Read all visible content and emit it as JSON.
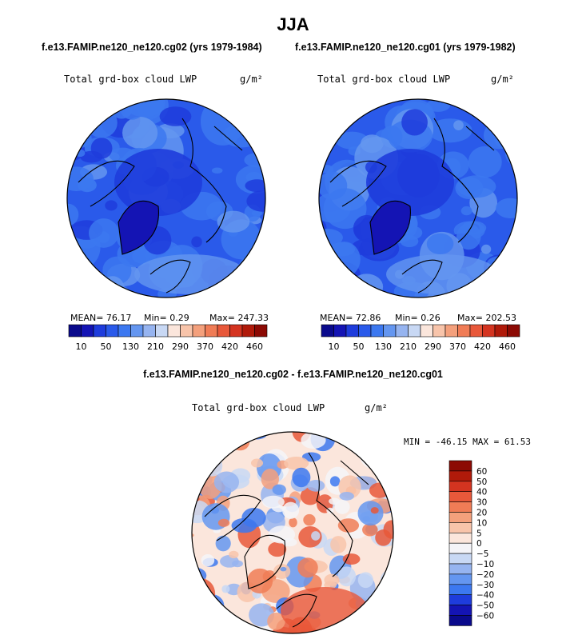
{
  "page": {
    "title": "JJA",
    "run_a_title": "f.e13.FAMIP.ne120_ne120.cg02 (yrs 1979-1984)",
    "run_b_title": "f.e13.FAMIP.ne120_ne120.cg01 (yrs 1979-1982)",
    "diff_title": "f.e13.FAMIP.ne120_ne120.cg02 - f.e13.FAMIP.ne120_ne120.cg01"
  },
  "chart_data": [
    {
      "type": "heatmap",
      "projection": "north-polar-stereographic",
      "title": "Total grd-box cloud LWP",
      "units": "g/m²",
      "stats_text": {
        "mean": "MEAN=  76.17",
        "min": "Min=   0.29",
        "max": "Max= 247.33"
      },
      "stats": {
        "mean": 76.17,
        "min": 0.29,
        "max": 247.33
      },
      "colorbar": {
        "orientation": "horizontal",
        "tick_labels": [
          "10",
          "50",
          "130",
          "210",
          "290",
          "370",
          "420",
          "460"
        ],
        "colors": [
          "#0a0a8c",
          "#1414b4",
          "#1e3cdc",
          "#2a5aea",
          "#3c78f0",
          "#6496f0",
          "#96b4f0",
          "#c8d8f4",
          "#fbe6dc",
          "#f8c4aa",
          "#f4a07c",
          "#f07c56",
          "#e8583a",
          "#d43420",
          "#b01a0a",
          "#8c0a04"
        ]
      }
    },
    {
      "type": "heatmap",
      "projection": "north-polar-stereographic",
      "title": "Total grd-box cloud LWP",
      "units": "g/m²",
      "stats_text": {
        "mean": "MEAN=  72.86",
        "min": "Min=   0.26",
        "max": "Max= 202.53"
      },
      "stats": {
        "mean": 72.86,
        "min": 0.26,
        "max": 202.53
      },
      "colorbar": {
        "orientation": "horizontal",
        "tick_labels": [
          "10",
          "50",
          "130",
          "210",
          "290",
          "370",
          "420",
          "460"
        ],
        "colors": [
          "#0a0a8c",
          "#1414b4",
          "#1e3cdc",
          "#2a5aea",
          "#3c78f0",
          "#6496f0",
          "#96b4f0",
          "#c8d8f4",
          "#fbe6dc",
          "#f8c4aa",
          "#f4a07c",
          "#f07c56",
          "#e8583a",
          "#d43420",
          "#b01a0a",
          "#8c0a04"
        ]
      }
    },
    {
      "type": "heatmap",
      "projection": "north-polar-stereographic",
      "title": "Total grd-box cloud LWP",
      "units": "g/m²",
      "stats_text": "MIN = -46.15 MAX =  61.53",
      "stats": {
        "min": -46.15,
        "max": 61.53
      },
      "colorbar": {
        "orientation": "vertical",
        "tick_labels": [
          "60",
          "50",
          "40",
          "30",
          "20",
          "10",
          "5",
          "0",
          "−5",
          "−10",
          "−20",
          "−30",
          "−40",
          "−50",
          "−60"
        ],
        "colors": [
          "#8c0a04",
          "#b01a0a",
          "#d43420",
          "#e8583a",
          "#f07c56",
          "#f4a07c",
          "#f8c4aa",
          "#fbe6dc",
          "#f4f4f8",
          "#c8d8f4",
          "#96b4f0",
          "#6496f0",
          "#3c78f0",
          "#1e3cdc",
          "#1414b4",
          "#0a0a8c"
        ]
      }
    }
  ]
}
